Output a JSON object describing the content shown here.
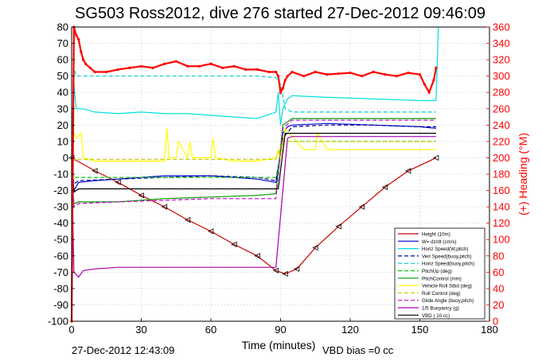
{
  "colors": {
    "height": "#cc0000",
    "w": "#0000cc",
    "horiz_speed_w": "#00e0e0",
    "vert_speed": "#000099",
    "horiz_speed_buoy": "#00cccc",
    "pitch_up": "#00cc00",
    "pitch_control": "#009900",
    "vehicle_roll": "#ffff00",
    "roll_control": "#cccc00",
    "glide_angle": "#cc00cc",
    "buoyancy": "#aa00aa",
    "vbd": "#000000",
    "heading": "#ff0000",
    "right_axis": "#ff0000"
  },
  "chart_data": {
    "type": "line",
    "title": "SG503 Ross2012, dive 276 started 27-Dec-2012 09:46:09",
    "xlabel": "Time (minutes)",
    "ylabel_right": "(+) Heading (°M)",
    "footer_left": "27-Dec-2012 12:43:09",
    "footer_right": "VBD bias =0 cc",
    "xlim": [
      0,
      180
    ],
    "ylim": [
      -100,
      80
    ],
    "ylim_right": [
      0,
      360
    ],
    "x_ticks": [
      0,
      30,
      60,
      90,
      120,
      150,
      180
    ],
    "y_ticks": [
      -100,
      -90,
      -80,
      -70,
      -60,
      -50,
      -40,
      -30,
      -20,
      -10,
      0,
      10,
      20,
      30,
      40,
      50,
      60,
      70,
      80
    ],
    "y_ticks_right": [
      0,
      20,
      40,
      60,
      80,
      100,
      120,
      140,
      160,
      180,
      200,
      220,
      240,
      260,
      280,
      300,
      320,
      340,
      360
    ],
    "grid": true,
    "legend_position": "bottom-right",
    "series": [
      {
        "key": "height",
        "name": "Height (10m)",
        "style": "solid",
        "marker": "triangle",
        "x": [
          0,
          10,
          20,
          30,
          40,
          50,
          60,
          70,
          80,
          88,
          92,
          97,
          105,
          115,
          125,
          135,
          145,
          157
        ],
        "y": [
          0,
          -8,
          -15,
          -23,
          -30,
          -38,
          -45,
          -53,
          -60,
          -69,
          -71,
          -68,
          -55,
          -42,
          -30,
          -18,
          -8,
          0
        ]
      },
      {
        "key": "w",
        "name": "W= dz/dt (cm/s)",
        "style": "solid",
        "x": [
          0,
          1,
          3,
          10,
          20,
          30,
          40,
          50,
          60,
          70,
          80,
          88,
          89,
          91,
          93,
          95,
          110,
          130,
          150,
          157
        ],
        "y": [
          -8,
          -20,
          -15,
          -14,
          -13,
          -12,
          -11,
          -11,
          -11,
          -12,
          -13,
          -15,
          -8,
          15,
          19,
          20,
          21,
          20,
          19,
          18
        ]
      },
      {
        "key": "horiz_speed_w",
        "name": "Horiz Speed(W,pitch)",
        "style": "solid",
        "x": [
          0,
          1,
          2,
          5,
          10,
          20,
          30,
          40,
          50,
          60,
          70,
          80,
          88,
          89,
          90,
          91,
          93,
          95,
          110,
          130,
          150,
          157,
          158
        ],
        "y": [
          15,
          45,
          30,
          30,
          28,
          27,
          28,
          27,
          27,
          26,
          25,
          24,
          28,
          40,
          20,
          30,
          36,
          38,
          37,
          36,
          35,
          35,
          80
        ]
      },
      {
        "key": "vert_speed",
        "name": "Vert Speed(buoy,pitch)",
        "style": "dashed",
        "x": [
          0,
          1,
          3,
          20,
          40,
          60,
          80,
          88,
          91,
          95,
          110,
          130,
          150,
          157
        ],
        "y": [
          -5,
          -16,
          -14,
          -13,
          -12,
          -11,
          -12,
          -14,
          12,
          19,
          20,
          20,
          19,
          19
        ]
      },
      {
        "key": "horiz_speed_buoy",
        "name": "Horiz Speed(buoy,pitch)",
        "style": "dashed",
        "x": [
          0,
          1,
          2,
          20,
          40,
          60,
          80,
          88,
          90,
          92,
          95,
          120,
          157
        ],
        "y": [
          10,
          55,
          50,
          50,
          50,
          50,
          50,
          49,
          45,
          30,
          28,
          28,
          28
        ]
      },
      {
        "key": "pitch_up",
        "name": "PitchUp (deg)",
        "style": "dashed",
        "x": [
          0,
          1,
          3,
          20,
          40,
          60,
          80,
          88,
          91,
          95,
          157
        ],
        "y": [
          -5,
          -12,
          -12,
          -12,
          -12,
          -12,
          -12,
          -12,
          10,
          10,
          10
        ]
      },
      {
        "key": "pitch_control",
        "name": "PitchControl (mm)",
        "style": "solid",
        "x": [
          0,
          1,
          3,
          20,
          40,
          60,
          80,
          88,
          91,
          95,
          157
        ],
        "y": [
          -10,
          -28,
          -27,
          -27,
          -25,
          -24,
          -23,
          -22,
          20,
          24,
          24
        ]
      },
      {
        "key": "vehicle_roll",
        "name": "Vehicle Roll Stbd (deg)",
        "style": "solid",
        "x": [
          0,
          1,
          2,
          4,
          5,
          10,
          20,
          30,
          40,
          41,
          42,
          45,
          46,
          50,
          51,
          52,
          60,
          61,
          62,
          70,
          80,
          88,
          89,
          90,
          92,
          100,
          105,
          106,
          110,
          120,
          140,
          157
        ],
        "y": [
          0,
          15,
          12,
          15,
          0,
          -2,
          -2,
          -2,
          -2,
          18,
          0,
          0,
          10,
          0,
          10,
          0,
          0,
          12,
          0,
          -2,
          -2,
          0,
          5,
          0,
          18,
          5,
          5,
          15,
          5,
          5,
          5,
          5
        ]
      },
      {
        "key": "roll_control",
        "name": "Roll Control (deg)",
        "style": "dashed",
        "x": [
          0,
          1,
          3,
          20,
          40,
          60,
          80,
          88,
          91,
          95,
          157
        ],
        "y": [
          0,
          -1,
          -1,
          -1,
          -1,
          -1,
          -1,
          -1,
          10,
          10,
          10
        ]
      },
      {
        "key": "glide_angle",
        "name": "Glide Angle (buoy,pitch)",
        "style": "dashed",
        "x": [
          0,
          1,
          3,
          20,
          40,
          60,
          80,
          88,
          91,
          95,
          157
        ],
        "y": [
          -5,
          -30,
          -28,
          -27,
          -26,
          -25,
          -25,
          -25,
          18,
          23,
          23
        ]
      },
      {
        "key": "buoyancy",
        "name": "1/5 Buoyancy (g)",
        "style": "solid",
        "x": [
          0,
          1,
          3,
          5,
          10,
          20,
          40,
          60,
          80,
          87,
          88,
          93,
          95,
          100,
          157
        ],
        "y": [
          0,
          -70,
          -73,
          -69,
          -68,
          -67,
          -67,
          -67,
          -67,
          -67,
          -67,
          12,
          13,
          13,
          13
        ]
      },
      {
        "key": "vbd",
        "name": "VBD ( 10 cc)",
        "style": "solid",
        "x": [
          0,
          1,
          3,
          20,
          40,
          60,
          80,
          88,
          89,
          92,
          95,
          157
        ],
        "y": [
          0,
          -21,
          -19,
          -19,
          -19,
          -19,
          -19,
          -19,
          -19,
          15,
          15,
          15
        ]
      }
    ],
    "heading_series": {
      "key": "heading",
      "axis": "right",
      "style": "dotted",
      "x": [
        0,
        1,
        2,
        3,
        4,
        5,
        6,
        8,
        10,
        15,
        20,
        25,
        30,
        35,
        40,
        45,
        50,
        55,
        60,
        65,
        70,
        75,
        80,
        85,
        88,
        89,
        90,
        91,
        92,
        93,
        95,
        100,
        105,
        110,
        115,
        120,
        125,
        130,
        135,
        140,
        145,
        150,
        152,
        154,
        156,
        157
      ],
      "y": [
        0,
        360,
        350,
        345,
        330,
        320,
        315,
        310,
        305,
        305,
        308,
        310,
        312,
        310,
        315,
        318,
        312,
        312,
        315,
        310,
        312,
        308,
        308,
        305,
        305,
        300,
        280,
        285,
        295,
        300,
        305,
        300,
        305,
        302,
        303,
        304,
        300,
        305,
        302,
        300,
        304,
        302,
        290,
        280,
        295,
        310
      ]
    }
  }
}
